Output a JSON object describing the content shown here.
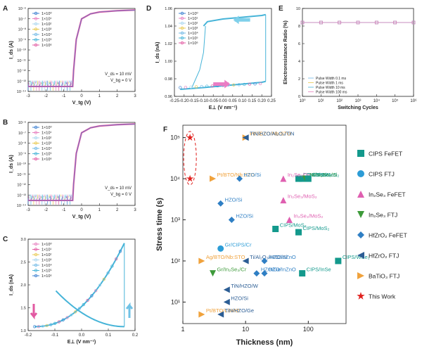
{
  "panel_letters": [
    "A",
    "B",
    "C",
    "D",
    "E",
    "F"
  ],
  "legend_cycles": [
    "1×10⁰",
    "1×10¹",
    "1×10²",
    "1×10³",
    "1×10⁴",
    "1×10⁵",
    "1×10⁶"
  ],
  "legend_colors": [
    "#3b7fd0",
    "#e77fbf",
    "#a9d6ef",
    "#e8c94f",
    "#6fb8e6",
    "#46b4d8",
    "#e25aa2"
  ],
  "annot_vds": "V_ds = 10 mV",
  "annot_vbg": "V_bg = 0 V",
  "chart_data": [
    {
      "panel": "A",
      "type": "line",
      "xlabel": "V_tg (V)",
      "ylabel": "I_ds (A)",
      "yscale": "log",
      "xlim": [
        -3,
        3
      ],
      "ylim": [
        1e-14,
        1e-06
      ],
      "xticks": [
        "-3",
        "-2",
        "-1",
        "0",
        "1",
        "2",
        "3"
      ],
      "yticks": [
        "10⁻¹⁴",
        "10⁻¹³",
        "10⁻¹²",
        "10⁻¹¹",
        "10⁻¹⁰",
        "10⁻⁹",
        "10⁻⁸",
        "10⁻⁷",
        "10⁻⁶"
      ],
      "series_names": [
        "1×10⁰",
        "1×10¹",
        "1×10²",
        "1×10³",
        "1×10⁴",
        "1×10⁵",
        "1×10⁶"
      ],
      "curve": {
        "x": [
          -3,
          -0.5,
          -0.45,
          -0.3,
          0,
          0.5,
          1,
          2,
          3
        ],
        "y": [
          3e-14,
          3e-14,
          1e-12,
          1e-09,
          1e-07,
          3e-07,
          4.5e-07,
          6e-07,
          7e-07
        ]
      },
      "noise_floor": [
        1e-14,
        1e-13
      ],
      "annotations": [
        "V_ds = 10 mV",
        "V_bg = 0 V"
      ]
    },
    {
      "panel": "B",
      "type": "line",
      "xlabel": "V_tg (V)",
      "ylabel": "I_ds (A)",
      "yscale": "log",
      "xlim": [
        -3,
        3
      ],
      "ylim": [
        1e-14,
        1e-06
      ],
      "xticks": [
        "-3",
        "-2",
        "-1",
        "0",
        "1",
        "2",
        "3"
      ],
      "yticks": [
        "10⁻¹⁴",
        "10⁻¹³",
        "10⁻¹²",
        "10⁻¹¹",
        "10⁻¹⁰",
        "10⁻⁹",
        "10⁻⁸",
        "10⁻⁷",
        "10⁻⁶"
      ],
      "series_names": [
        "1×10⁰",
        "1×10¹",
        "1×10²",
        "1×10³",
        "1×10⁴",
        "1×10⁵",
        "1×10⁶"
      ],
      "curve": {
        "x": [
          -3,
          -0.5,
          -0.45,
          -0.3,
          0,
          0.5,
          1,
          2,
          3
        ],
        "y": [
          3e-14,
          3e-14,
          1e-12,
          1e-09,
          1e-07,
          3e-07,
          4.5e-07,
          6e-07,
          7e-07
        ]
      },
      "noise_floor": [
        1e-14,
        1e-13
      ],
      "annotations": [
        "V_ds = 10 mV",
        "V_bg = 0 V"
      ]
    },
    {
      "panel": "C",
      "type": "line",
      "xlabel": "E⊥ (V nm⁻¹)",
      "ylabel": "I_ds (nA)",
      "xlim": [
        -0.25,
        0.25
      ],
      "ylim": [
        0.7,
        3.0
      ],
      "xticks": [
        "-0.2",
        "-0.1",
        "0.0",
        "0.1",
        "0.2"
      ],
      "yticks": [
        "1.0",
        "1.5",
        "2.0",
        "2.5",
        "3.0"
      ],
      "series_names": [
        "1×10⁰",
        "1×10¹",
        "1×10²",
        "1×10³",
        "1×10⁴",
        "1×10⁵",
        "1×10⁶"
      ],
      "branch_up": {
        "x": [
          -0.22,
          -0.15,
          -0.1,
          0.0,
          0.1,
          0.2
        ],
        "y": [
          0.8,
          0.95,
          1.1,
          1.6,
          2.2,
          2.9
        ]
      },
      "branch_down": {
        "x": [
          0.2,
          0.1,
          0.0,
          -0.1,
          -0.12
        ],
        "y": [
          0.8,
          0.95,
          1.2,
          1.55,
          1.7
        ]
      }
    },
    {
      "panel": "D",
      "type": "line",
      "xlabel": "E⊥ (V nm⁻¹)",
      "ylabel": "I_ds (nA)",
      "xlim": [
        -0.25,
        0.25
      ],
      "ylim": [
        0.96,
        1.06
      ],
      "xticks": [
        "-0.25",
        "-0.20",
        "-0.15",
        "-0.10",
        "-0.05",
        "0.00",
        "0.05",
        "0.10",
        "0.15",
        "0.20",
        "0.25"
      ],
      "yticks": [
        "0.96",
        "0.98",
        "1.00",
        "1.02",
        "1.04",
        "1.06"
      ],
      "series_names": [
        "1×10⁰",
        "1×10¹",
        "1×10²",
        "1×10³",
        "1×10⁴",
        "1×10⁵",
        "1×10⁶"
      ],
      "high_branch": {
        "x": [
          -0.1,
          -0.08,
          0.0,
          0.1,
          0.2,
          0.22
        ],
        "y": [
          1.04,
          1.045,
          1.048,
          1.05,
          1.052,
          1.053
        ]
      },
      "low_branch": {
        "x": [
          -0.22,
          -0.1,
          0.0,
          0.1,
          0.2,
          0.22
        ],
        "y": [
          0.968,
          0.97,
          0.972,
          0.974,
          0.976,
          0.977
        ]
      }
    },
    {
      "panel": "E",
      "type": "line",
      "xlabel": "Switching Cycles",
      "ylabel": "Electroresistance Ratio (%)",
      "xscale": "log",
      "xlim": [
        1,
        1000000
      ],
      "ylim": [
        0,
        10
      ],
      "xticks": [
        "10⁰",
        "10¹",
        "10²",
        "10³",
        "10⁴",
        "10⁵",
        "10⁶"
      ],
      "yticks": [
        "0",
        "2",
        "4",
        "6",
        "8",
        "10"
      ],
      "x": [
        1,
        10,
        100,
        1000,
        10000,
        100000,
        1000000
      ],
      "series": [
        {
          "name": "Pulse Width 0.1 ms",
          "values": [
            8.4,
            8.4,
            8.4,
            8.4,
            8.4,
            8.4,
            8.4
          ]
        },
        {
          "name": "Pulse Width 1 ms",
          "values": [
            8.4,
            8.4,
            8.4,
            8.4,
            8.4,
            8.4,
            8.4
          ]
        },
        {
          "name": "Pulse Width 10 ms",
          "values": [
            8.4,
            8.4,
            8.4,
            8.4,
            8.4,
            8.4,
            8.4
          ]
        },
        {
          "name": "Pulse Width 100 ms",
          "values": [
            8.4,
            8.4,
            8.4,
            8.4,
            8.4,
            8.4,
            8.4
          ]
        }
      ]
    },
    {
      "panel": "F",
      "type": "scatter",
      "xlabel": "Thickness (nm)",
      "ylabel": "Stress time (s)",
      "xscale": "log",
      "yscale": "log",
      "xlim": [
        1,
        400
      ],
      "ylim": [
        3,
        200000
      ],
      "xticks": [
        "1",
        "10",
        "100"
      ],
      "yticks": [
        "10¹",
        "10²",
        "10³",
        "10⁴",
        "10⁵"
      ],
      "legend": [
        {
          "name": "CIPS FeFET",
          "shape": "square",
          "color": "#13998c"
        },
        {
          "name": "CIPS FTJ",
          "shape": "circle",
          "color": "#2c9cd6"
        },
        {
          "name": "In₂Se₃ FeFET",
          "shape": "triangle-up",
          "color": "#df5fb0"
        },
        {
          "name": "In₂Se₃ FTJ",
          "shape": "triangle-down",
          "color": "#3d9a3a"
        },
        {
          "name": "HfZrO₂ FeFET",
          "shape": "diamond",
          "color": "#2f7fc4"
        },
        {
          "name": "HfZrO₂ FTJ",
          "shape": "triangle-left",
          "color": "#2b5d94"
        },
        {
          "name": "BaTiO₃ FTJ",
          "shape": "triangle-right",
          "color": "#f0a23c"
        },
        {
          "name": "This Work",
          "shape": "star",
          "color": "#e0201d"
        }
      ],
      "points": [
        {
          "label": "This Work",
          "group": "This Work",
          "x": 1.3,
          "y": 100000
        },
        {
          "label": "This Work",
          "group": "This Work",
          "x": 1.3,
          "y": 10000
        },
        {
          "label": "Pt/SBTO/Nb:STO",
          "group": "BaTiO₃ FTJ",
          "x": 10,
          "y": 100000
        },
        {
          "label": "TiN/HZO/Al₂O₃/TiN",
          "group": "HfZrO₂ FTJ",
          "x": 10,
          "y": 100000
        },
        {
          "label": "Pt/BTO/Nb:STO",
          "group": "BaTiO₃ FTJ",
          "x": 3,
          "y": 10000
        },
        {
          "label": "HZO/Si",
          "group": "HfZrO₂ FeFET",
          "x": 8,
          "y": 10000
        },
        {
          "label": "CIPS/SnS",
          "group": "CIPS FeFET",
          "x": 70,
          "y": 10000
        },
        {
          "label": "CIPS/SnS",
          "group": "CIPS FeFET",
          "x": 80,
          "y": 10000
        },
        {
          "label": "In₂Se₃/Gr",
          "group": "In₂Se₃ FeFET",
          "x": 40,
          "y": 10000
        },
        {
          "label": "Ni/In₂Se₃/Si",
          "group": "In₂Se₃ FTJ",
          "x": 90,
          "y": 10000
        },
        {
          "label": "CIPS/MoS₂",
          "group": "CIPS FeFET",
          "x": 100,
          "y": 10000
        },
        {
          "label": "HZO/Si",
          "group": "HfZrO₂ FeFET",
          "x": 4,
          "y": 2500
        },
        {
          "label": "In₂Se₃/MoS₂",
          "group": "In₂Se₃ FeFET",
          "x": 40,
          "y": 3000
        },
        {
          "label": "HZO/Si",
          "group": "HfZrO₂ FeFET",
          "x": 6,
          "y": 1000
        },
        {
          "label": "In₂Se₃/MoS₂",
          "group": "In₂Se₃ FeFET",
          "x": 50,
          "y": 1000
        },
        {
          "label": "CIPS/MoS₂",
          "group": "CIPS FeFET",
          "x": 30,
          "y": 600
        },
        {
          "label": "CIPS/MoS₂",
          "group": "CIPS FeFET",
          "x": 70,
          "y": 500
        },
        {
          "label": "Gr/CIPS/Cr",
          "group": "CIPS FTJ",
          "x": 4,
          "y": 200
        },
        {
          "label": "Ag/BTO/Nb:STO",
          "group": "BaTiO₃ FTJ",
          "x": 2,
          "y": 100
        },
        {
          "label": "Ti/Al₂O₃/HZO/Si",
          "group": "HfZrO₂ FTJ",
          "x": 10,
          "y": 100
        },
        {
          "label": "HZO/InZnO",
          "group": "HfZrO₂ FeFET",
          "x": 20,
          "y": 100
        },
        {
          "label": "CIPS/WSe₂",
          "group": "CIPS FeFET",
          "x": 300,
          "y": 100
        },
        {
          "label": "Gr/In₂Se₃/Cr",
          "group": "In₂Se₃ FTJ",
          "x": 3,
          "y": 50
        },
        {
          "label": "HZO/Ge",
          "group": "HfZrO₂ FeFET",
          "x": 15,
          "y": 50
        },
        {
          "label": "HZO/InZnO",
          "group": "HfZrO₂ FeFET",
          "x": 20,
          "y": 50
        },
        {
          "label": "CIPS/InSe",
          "group": "CIPS FeFET",
          "x": 80,
          "y": 50
        },
        {
          "label": "TiN/HZO/W",
          "group": "HfZrO₂ FTJ",
          "x": 5,
          "y": 20
        },
        {
          "label": "HZO/Si",
          "group": "HfZrO₂ FTJ",
          "x": 5,
          "y": 10
        },
        {
          "label": "Pt/BTO/LSMO",
          "group": "BaTiO₃ FTJ",
          "x": 2,
          "y": 5
        },
        {
          "label": "TiN/HZO/Ge",
          "group": "HfZrO₂ FTJ",
          "x": 4,
          "y": 5
        }
      ]
    }
  ]
}
